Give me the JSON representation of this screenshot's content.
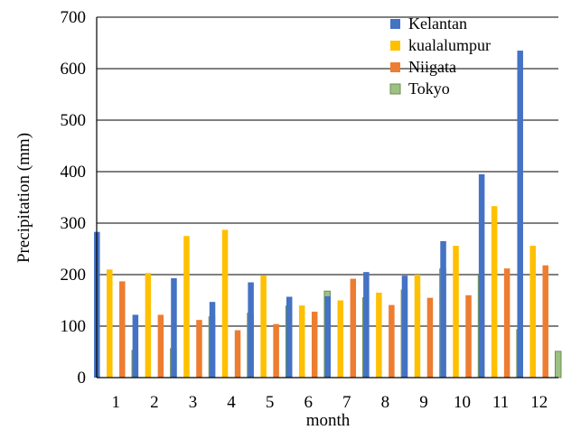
{
  "chart_data": {
    "type": "bar",
    "categories": [
      "1",
      "2",
      "3",
      "4",
      "5",
      "6",
      "7",
      "8",
      "9",
      "10",
      "11",
      "12"
    ],
    "series": [
      {
        "name": "Kelantan",
        "color": "#4472C4",
        "values": [
          283,
          122,
          193,
          147,
          185,
          157,
          158,
          205,
          198,
          265,
          395,
          635
        ]
      },
      {
        "name": "kualalumpur",
        "color": "#FFC000",
        "values": [
          210,
          203,
          275,
          287,
          198,
          140,
          150,
          165,
          200,
          256,
          333,
          256
        ]
      },
      {
        "name": "Niigata",
        "color": "#ED7D31",
        "values": [
          187,
          122,
          112,
          92,
          104,
          128,
          192,
          141,
          155,
          160,
          212,
          218
        ]
      },
      {
        "name": "Tokyo",
        "color": "#9DC183",
        "values": [
          53,
          56,
          118,
          125,
          139,
          168,
          155,
          170,
          211,
          199,
          93,
          51
        ]
      }
    ],
    "y_ticks": [
      "0",
      "100",
      "200",
      "300",
      "400",
      "500",
      "600",
      "700"
    ],
    "ylim": [
      0,
      700
    ],
    "xlabel": "month",
    "ylabel": "Precipitation (mm)",
    "grid": true,
    "legend_position": "top-right"
  }
}
